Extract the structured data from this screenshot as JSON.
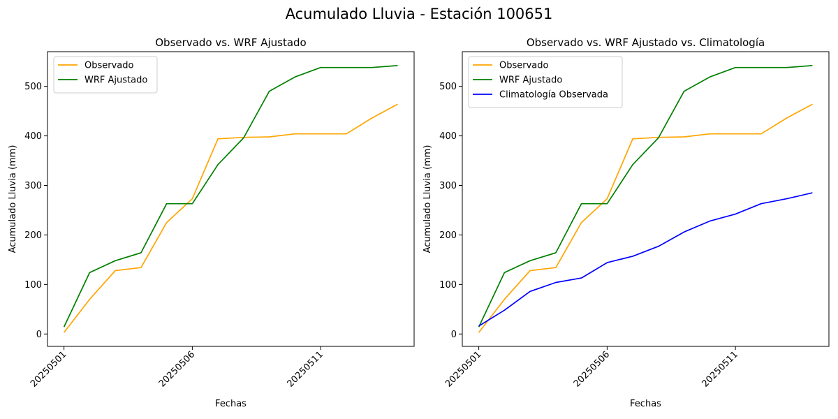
{
  "figure": {
    "suptitle": "Acumulado Lluvia - Estación 100651"
  },
  "colors": {
    "observado": "#ffa500",
    "wrf": "#008000",
    "clim": "#0000ff"
  },
  "chart_data": [
    {
      "type": "line",
      "title": "Observado vs. WRF Ajustado",
      "xlabel": "Fechas",
      "ylabel": "Acumulado Lluvia (mm)",
      "x": [
        "20250501",
        "20250502",
        "20250503",
        "20250504",
        "20250505",
        "20250506",
        "20250507",
        "20250508",
        "20250509",
        "20250510",
        "20250511",
        "20250512",
        "20250513",
        "20250514"
      ],
      "x_tick_labels": [
        "20250501",
        "20250506",
        "20250511"
      ],
      "y_ticks": [
        0,
        100,
        200,
        300,
        400,
        500
      ],
      "ylim": [
        -25,
        570
      ],
      "grid": false,
      "legend_position": "top-left",
      "series": [
        {
          "name": "Observado",
          "color": "#ffa500",
          "values": [
            3,
            70,
            128,
            134,
            225,
            273,
            394,
            397,
            398,
            404,
            404,
            404,
            436,
            464
          ]
        },
        {
          "name": "WRF Ajustado",
          "color": "#008000",
          "values": [
            14,
            124,
            148,
            164,
            263,
            263,
            342,
            396,
            490,
            519,
            538,
            538,
            538,
            542
          ]
        }
      ]
    },
    {
      "type": "line",
      "title": "Observado vs. WRF Ajustado vs. Climatología",
      "xlabel": "Fechas",
      "ylabel": "Acumulado Lluvia (mm)",
      "x": [
        "20250501",
        "20250502",
        "20250503",
        "20250504",
        "20250505",
        "20250506",
        "20250507",
        "20250508",
        "20250509",
        "20250510",
        "20250511",
        "20250512",
        "20250513",
        "20250514"
      ],
      "x_tick_labels": [
        "20250501",
        "20250506",
        "20250511"
      ],
      "y_ticks": [
        0,
        100,
        200,
        300,
        400,
        500
      ],
      "ylim": [
        -25,
        570
      ],
      "grid": false,
      "legend_position": "top-left",
      "series": [
        {
          "name": "Observado",
          "color": "#ffa500",
          "values": [
            3,
            70,
            128,
            134,
            225,
            273,
            394,
            397,
            398,
            404,
            404,
            404,
            436,
            464
          ]
        },
        {
          "name": "WRF Ajustado",
          "color": "#008000",
          "values": [
            14,
            124,
            148,
            164,
            263,
            263,
            342,
            396,
            490,
            519,
            538,
            538,
            538,
            542
          ]
        },
        {
          "name": "Climatología Observada",
          "color": "#0000ff",
          "values": [
            16,
            48,
            86,
            104,
            113,
            144,
            157,
            177,
            206,
            228,
            242,
            263,
            273,
            285
          ]
        }
      ]
    }
  ]
}
